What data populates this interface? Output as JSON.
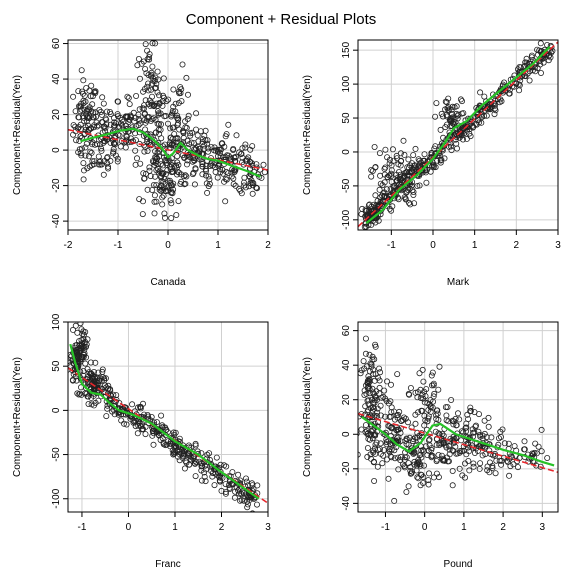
{
  "figure": {
    "title": "Component + Residual Plots"
  },
  "colors": {
    "points": "#222222",
    "fit_line": "#e8262b",
    "smooth_line": "#27c227",
    "grid": "#d0d0d0",
    "frame": "#000000"
  },
  "chart_data": [
    {
      "type": "scatter",
      "xlabel": "Canada",
      "ylabel": "Component+Residual(Yen)",
      "xlim": [
        -2,
        2
      ],
      "ylim": [
        -45,
        62
      ],
      "x_ticks": [
        -2,
        -1,
        0,
        1,
        2
      ],
      "y_ticks": [
        -40,
        -20,
        0,
        20,
        40,
        60
      ],
      "grid": true,
      "fit_line": {
        "x": [
          -2,
          2.05
        ],
        "y": [
          11.5,
          -11.5
        ]
      },
      "smooth_line": {
        "x": [
          -1.75,
          -1.5,
          -1.2,
          -0.95,
          -0.7,
          -0.5,
          -0.3,
          -0.15,
          0.0,
          0.1,
          0.25,
          0.4,
          0.6,
          0.8,
          1.0,
          1.3,
          1.6,
          1.85
        ],
        "y": [
          5,
          7,
          9,
          11,
          12,
          10,
          6,
          2,
          -4,
          -2,
          4,
          0,
          -3,
          -5,
          -6,
          -9,
          -12,
          -15
        ]
      },
      "clusters": [
        {
          "x": -1.65,
          "y": 15,
          "sx": 0.12,
          "sy": 12,
          "n": 80
        },
        {
          "x": -1.3,
          "y": 8,
          "sx": 0.2,
          "sy": 13,
          "n": 90
        },
        {
          "x": -0.8,
          "y": 12,
          "sx": 0.2,
          "sy": 8,
          "n": 70
        },
        {
          "x": -0.35,
          "y": 25,
          "sx": 0.15,
          "sy": 18,
          "n": 110
        },
        {
          "x": -0.1,
          "y": -15,
          "sx": 0.18,
          "sy": 14,
          "n": 100
        },
        {
          "x": 0.2,
          "y": 10,
          "sx": 0.15,
          "sy": 16,
          "n": 80
        },
        {
          "x": 0.6,
          "y": -4,
          "sx": 0.3,
          "sy": 9,
          "n": 100
        },
        {
          "x": 1.2,
          "y": -6,
          "sx": 0.3,
          "sy": 8,
          "n": 70
        },
        {
          "x": 1.65,
          "y": -13,
          "sx": 0.12,
          "sy": 6,
          "n": 40
        }
      ]
    },
    {
      "type": "scatter",
      "xlabel": "Mark",
      "ylabel": "Component+Residual(Yen)",
      "xlim": [
        -1.8,
        3.0
      ],
      "ylim": [
        -115,
        165
      ],
      "x_ticks": [
        -1,
        0,
        1,
        2,
        3
      ],
      "y_ticks": [
        -100,
        -50,
        0,
        50,
        100,
        150
      ],
      "grid": true,
      "fit_line": {
        "x": [
          -1.8,
          3.0
        ],
        "y": [
          -110,
          162
        ]
      },
      "smooth_line": {
        "x": [
          -1.6,
          -1.2,
          -0.8,
          -0.4,
          0.0,
          0.3,
          0.5,
          0.8,
          1.2,
          1.6,
          2.0,
          2.4,
          2.8
        ],
        "y": [
          -105,
          -85,
          -55,
          -35,
          -10,
          15,
          35,
          45,
          70,
          90,
          110,
          130,
          155
        ]
      },
      "line_band": {
        "slope": 56.7,
        "intercept": -8,
        "x0": -1.65,
        "x1": 2.9,
        "sd": 9,
        "n": 420
      },
      "clusters": [
        {
          "x": -0.9,
          "y": -35,
          "sx": 0.3,
          "sy": 22,
          "n": 90
        },
        {
          "x": -1.5,
          "y": -95,
          "sx": 0.1,
          "sy": 8,
          "n": 30
        },
        {
          "x": 0.5,
          "y": 50,
          "sx": 0.2,
          "sy": 15,
          "n": 50
        }
      ]
    },
    {
      "type": "scatter",
      "xlabel": "Franc",
      "ylabel": "Component+Residual(Yen)",
      "xlim": [
        -1.3,
        3.0
      ],
      "ylim": [
        -115,
        100
      ],
      "x_ticks": [
        -1,
        0,
        1,
        2,
        3
      ],
      "y_ticks": [
        -100,
        -50,
        0,
        50,
        100
      ],
      "grid": true,
      "fit_line": {
        "x": [
          -1.3,
          3.0
        ],
        "y": [
          48,
          -105
        ]
      },
      "smooth_line": {
        "x": [
          -1.25,
          -1.15,
          -1.0,
          -0.8,
          -0.6,
          -0.4,
          -0.2,
          0.1,
          0.5,
          1.0,
          1.5,
          2.0,
          2.4,
          2.8
        ],
        "y": [
          75,
          55,
          30,
          20,
          18,
          8,
          0,
          -5,
          -15,
          -35,
          -50,
          -70,
          -85,
          -100
        ]
      },
      "line_band": {
        "slope": -36,
        "intercept": -3,
        "x0": -0.5,
        "x1": 2.8,
        "sd": 8,
        "n": 330
      },
      "clusters": [
        {
          "x": -1.1,
          "y": 55,
          "sx": 0.08,
          "sy": 15,
          "n": 80
        },
        {
          "x": -0.75,
          "y": 28,
          "sx": 0.12,
          "sy": 10,
          "n": 90
        },
        {
          "x": -0.95,
          "y": 75,
          "sx": 0.05,
          "sy": 10,
          "n": 25
        }
      ]
    },
    {
      "type": "scatter",
      "xlabel": "Pound",
      "ylabel": "Component+Residual(Yen)",
      "xlim": [
        -1.7,
        3.4
      ],
      "ylim": [
        -45,
        65
      ],
      "x_ticks": [
        -1,
        0,
        1,
        2,
        3
      ],
      "y_ticks": [
        -40,
        -20,
        0,
        20,
        40,
        60
      ],
      "grid": true,
      "fit_line": {
        "x": [
          -1.7,
          3.4
        ],
        "y": [
          12,
          -22
        ]
      },
      "smooth_line": {
        "x": [
          -1.6,
          -1.3,
          -1.0,
          -0.7,
          -0.4,
          -0.1,
          0.2,
          0.4,
          0.8,
          1.2,
          1.6,
          2.0,
          2.5,
          3.0,
          3.3
        ],
        "y": [
          10,
          5,
          0,
          -6,
          -10,
          -5,
          5,
          6,
          0,
          -3,
          -6,
          -9,
          -12,
          -16,
          -18
        ]
      },
      "clusters": [
        {
          "x": -1.35,
          "y": 20,
          "sx": 0.15,
          "sy": 18,
          "n": 110
        },
        {
          "x": -0.8,
          "y": 2,
          "sx": 0.3,
          "sy": 12,
          "n": 110
        },
        {
          "x": -0.2,
          "y": -15,
          "sx": 0.2,
          "sy": 10,
          "n": 70
        },
        {
          "x": 0.1,
          "y": 18,
          "sx": 0.15,
          "sy": 10,
          "n": 50
        },
        {
          "x": 0.7,
          "y": -5,
          "sx": 0.35,
          "sy": 10,
          "n": 110
        },
        {
          "x": 1.5,
          "y": -8,
          "sx": 0.4,
          "sy": 7,
          "n": 70
        },
        {
          "x": 2.5,
          "y": -14,
          "sx": 0.4,
          "sy": 5,
          "n": 40
        }
      ]
    }
  ]
}
